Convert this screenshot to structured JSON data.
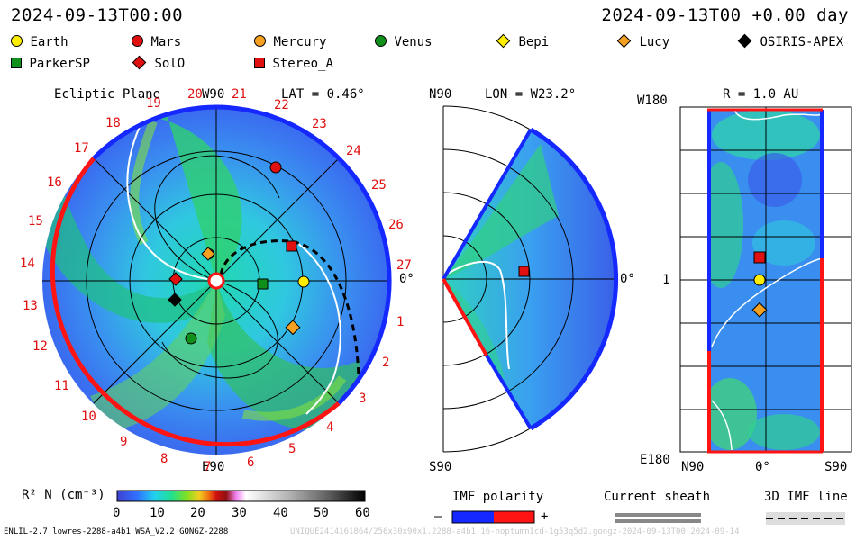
{
  "header": {
    "left_time": "2024-09-13T00:00",
    "right_time": "2024-09-13T00 +0.00 day"
  },
  "legend": [
    {
      "name": "Earth",
      "shape": "circle",
      "color": "#ffee00"
    },
    {
      "name": "Mars",
      "shape": "circle",
      "color": "#e01010"
    },
    {
      "name": "Mercury",
      "shape": "circle",
      "color": "#f5a020"
    },
    {
      "name": "Venus",
      "shape": "circle",
      "color": "#10901a"
    },
    {
      "name": "Bepi",
      "shape": "diamond",
      "color": "#ffee00"
    },
    {
      "name": "Lucy",
      "shape": "diamond",
      "color": "#f5a020"
    },
    {
      "name": "OSIRIS-APEX",
      "shape": "diamond",
      "color": "#000000"
    },
    {
      "name": "ParkerSP",
      "shape": "square",
      "color": "#10901a"
    },
    {
      "name": "SolO",
      "shape": "diamond",
      "color": "#e01010"
    },
    {
      "name": "Stereo_A",
      "shape": "square",
      "color": "#e01010"
    }
  ],
  "ecliptic": {
    "title": "Ecliptic Plane",
    "lat_label": "LAT = 0.46°",
    "top_label": "W90",
    "bottom_label": "E90",
    "right_label": "0°",
    "carrington": [
      "1",
      "2",
      "3",
      "4",
      "5",
      "6",
      "7",
      "8",
      "9",
      "10",
      "11",
      "12",
      "13",
      "14",
      "15",
      "16",
      "17",
      "18",
      "19",
      "20",
      "21",
      "22",
      "23",
      "24",
      "25",
      "26",
      "27"
    ]
  },
  "meridional": {
    "lon_label": "LON = W23.2°",
    "top_label": "N90",
    "bottom_label": "S90",
    "right_label": "0°"
  },
  "radial": {
    "r_label": "R = 1.0 AU",
    "top_label": "W180",
    "bottom_label": "E180",
    "mid_label": "1",
    "x_left": "N90",
    "x_mid": "0°",
    "x_right": "S90"
  },
  "colorbar": {
    "label": "R² N (cm⁻³)",
    "ticks": [
      "0",
      "10",
      "20",
      "30",
      "40",
      "50",
      "60"
    ]
  },
  "imf": {
    "title": "IMF polarity",
    "minus": "–",
    "plus": "+",
    "neg_color": "#1428ff",
    "pos_color": "#ff1414"
  },
  "sheath": {
    "title": "Current sheath"
  },
  "imf3d": {
    "title": "3D IMF line"
  },
  "footer": {
    "left": "ENLIL-2.7 lowres-2288-a4b1 WSA_V2.2 GONGZ-2288",
    "right": "UNIQUE2414161864/256x30x90x1.2288-a4b1.16-noptumnIcd-1g53q5d2.gongz-2024-09-13T00    2024-09-14"
  }
}
